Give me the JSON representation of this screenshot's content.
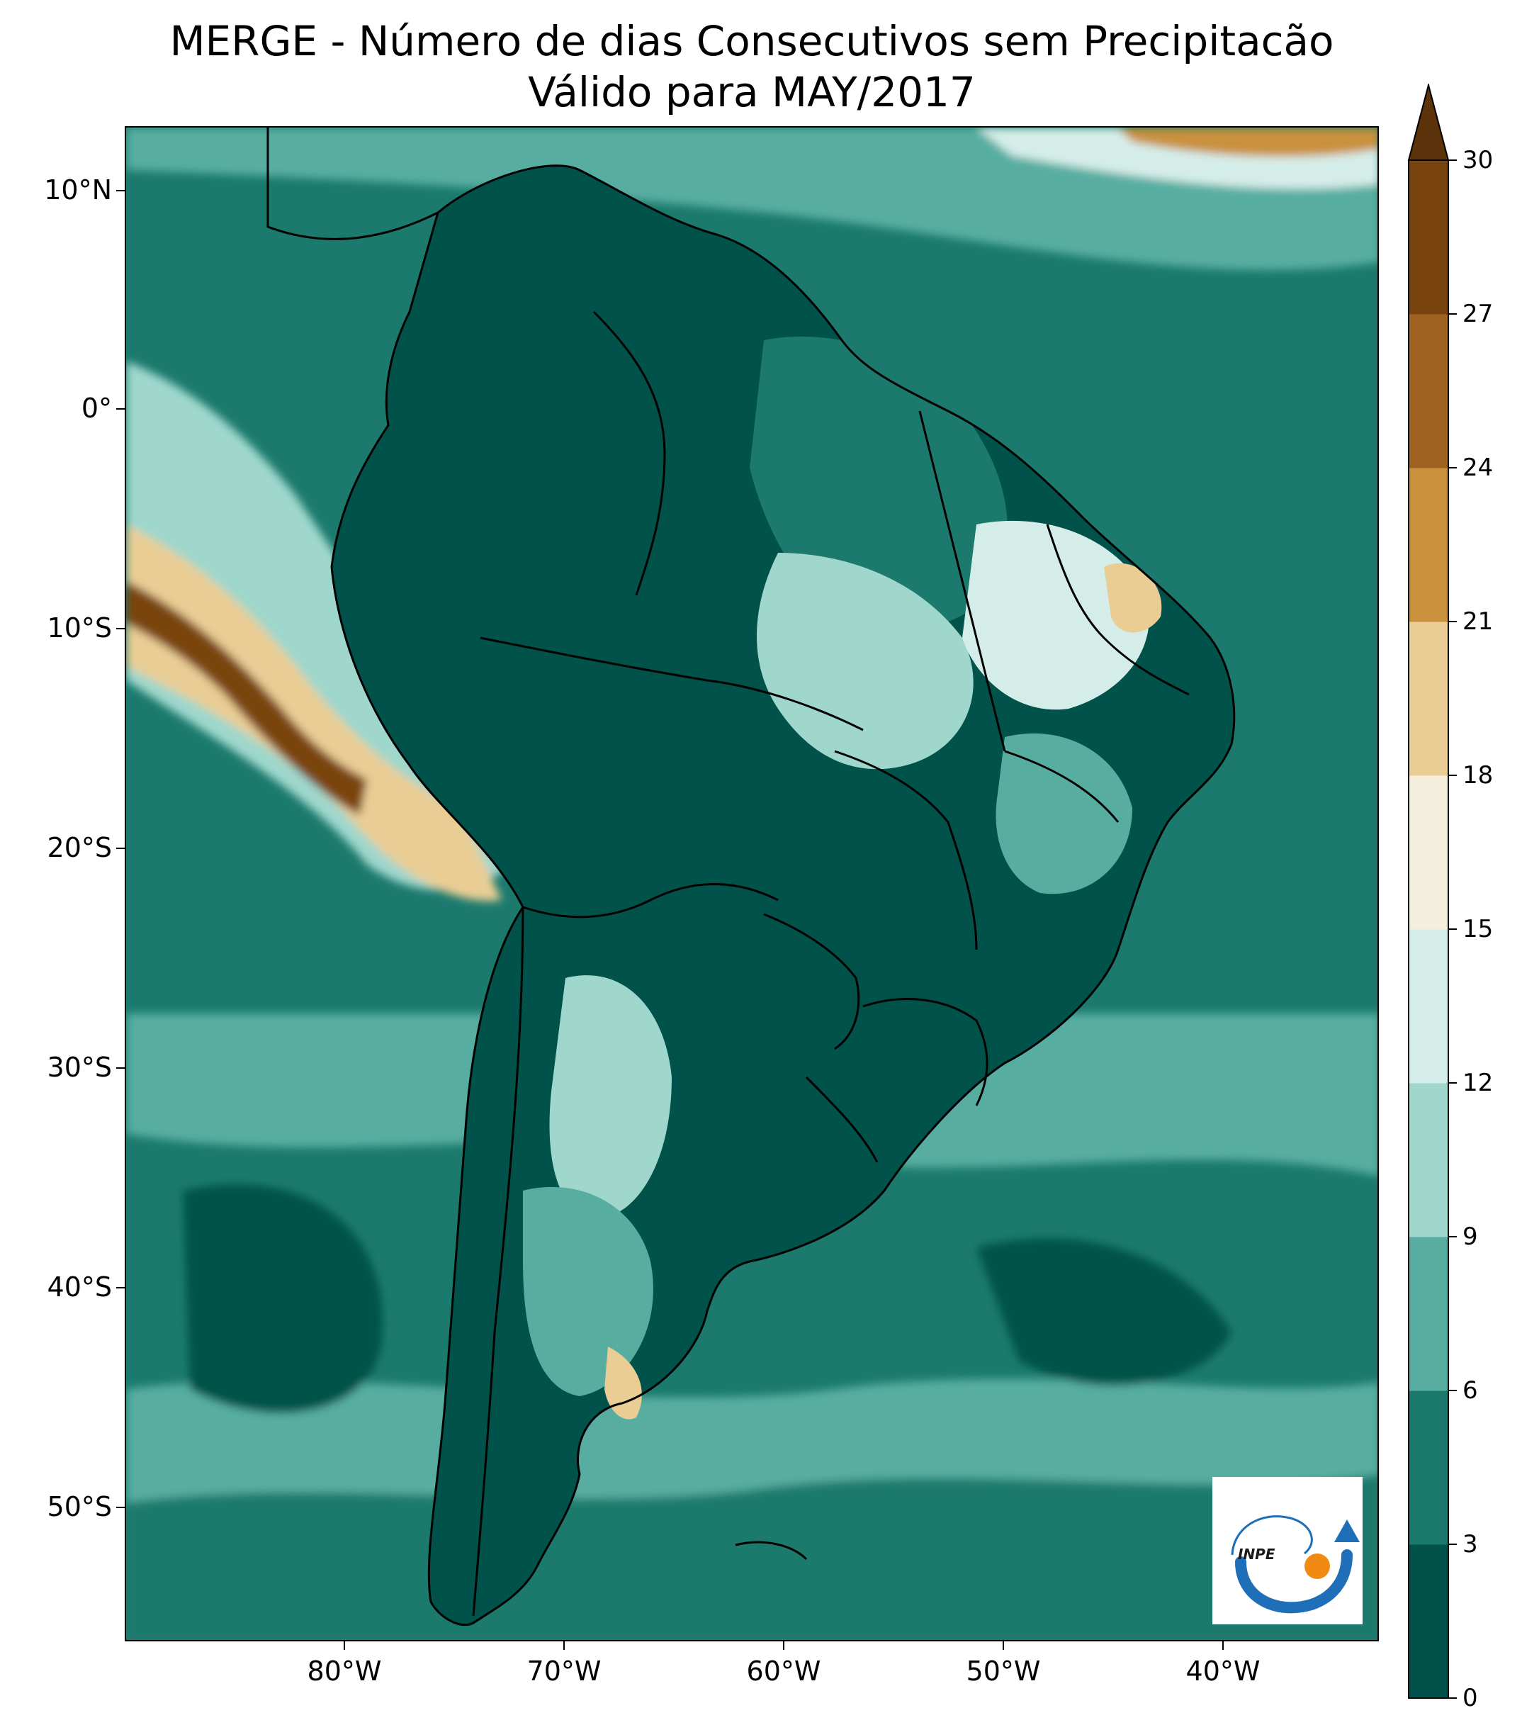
{
  "title": {
    "line1": "MERGE - Número de dias Consecutivos sem Precipitacão",
    "line2": "Válido para MAY/2017"
  },
  "map": {
    "lat_ticks": [
      "10°N",
      "0°",
      "10°S",
      "20°S",
      "30°S",
      "40°S",
      "50°S"
    ],
    "lon_ticks": [
      "80°W",
      "70°W",
      "60°W",
      "50°W",
      "40°W"
    ],
    "logo_text": "INPE"
  },
  "colorbar": {
    "tick_labels": [
      "0",
      "3",
      "6",
      "9",
      "12",
      "15",
      "18",
      "21",
      "24",
      "27",
      "30"
    ],
    "colors": [
      "#00524a",
      "#1b7a6d",
      "#57ada0",
      "#9fd7cc",
      "#d5ede9",
      "#f4efdd",
      "#e9cd95",
      "#c9913c",
      "#a06220",
      "#7a4410",
      "#5b3209"
    ],
    "extend": "max"
  }
}
